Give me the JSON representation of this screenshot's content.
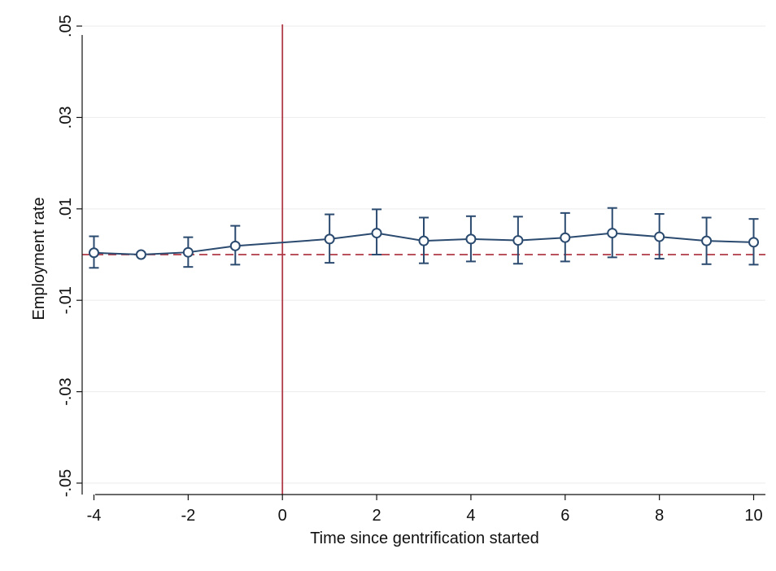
{
  "chart_data": {
    "type": "line",
    "title": "",
    "xlabel": "Time since gentrification started",
    "ylabel": "Employment rate",
    "xlim": [
      -4.25,
      10.25
    ],
    "ylim": [
      -0.0525,
      0.0525
    ],
    "x_ticks": [
      -4,
      -2,
      0,
      2,
      4,
      6,
      8,
      10
    ],
    "x_tick_labels": [
      "-4",
      "-2",
      "0",
      "2",
      "4",
      "6",
      "8",
      "10"
    ],
    "y_ticks": [
      -0.05,
      -0.03,
      -0.01,
      0.01,
      0.03,
      0.05
    ],
    "y_tick_labels": [
      "-.05",
      "-.03",
      "-.01",
      ".01",
      ".03",
      ".05"
    ],
    "grid": true,
    "legend": "none",
    "reference_lines": {
      "vertical_x": 0,
      "horizontal_y": 0,
      "vertical_style": "solid",
      "horizontal_style": "dashed"
    },
    "series": [
      {
        "x": [
          -4,
          -3,
          -2,
          -1,
          1,
          2,
          3,
          4,
          5,
          6,
          7,
          8,
          9,
          10
        ],
        "y": [
          0.0004,
          0.0,
          0.0005,
          0.0019,
          0.0034,
          0.0047,
          0.003,
          0.0034,
          0.0031,
          0.0037,
          0.0047,
          0.0039,
          0.003,
          0.0027
        ],
        "ci_low": [
          -0.0029,
          null,
          -0.0027,
          -0.0022,
          -0.0018,
          0.0,
          -0.0019,
          -0.0015,
          -0.002,
          -0.0015,
          -0.0006,
          -0.0009,
          -0.0021,
          -0.0022
        ],
        "ci_high": [
          0.004,
          null,
          0.0038,
          0.0063,
          0.0088,
          0.0099,
          0.0081,
          0.0084,
          0.0083,
          0.0091,
          0.0102,
          0.0089,
          0.0081,
          0.0078
        ]
      }
    ],
    "colors": {
      "series": "#2b4a6f",
      "reference": "#b03a48",
      "grid": "#eeeeee",
      "axis": "#111111"
    }
  }
}
